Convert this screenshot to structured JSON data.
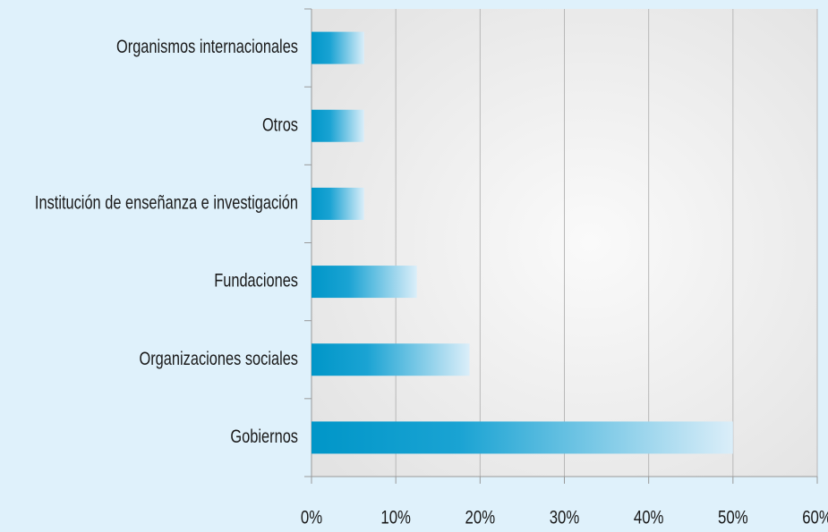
{
  "chart_data": {
    "type": "bar",
    "orientation": "horizontal",
    "categories": [
      "Organismos internacionales",
      "Otros",
      "Institución de enseñanza e investigación",
      "Fundaciones",
      "Organizaciones sociales",
      "Gobiernos"
    ],
    "values": [
      6.25,
      6.25,
      6.25,
      12.5,
      18.75,
      50
    ],
    "color": "#0099cc",
    "xlim": [
      0,
      60
    ],
    "xticks": [
      {
        "value": 0,
        "label": "0%"
      },
      {
        "value": 10,
        "label": "10%"
      },
      {
        "value": 20,
        "label": "20%"
      },
      {
        "value": 30,
        "label": "30%"
      },
      {
        "value": 40,
        "label": "40%"
      },
      {
        "value": 50,
        "label": "50%"
      },
      {
        "value": 60,
        "label": "60%"
      }
    ],
    "grid": true
  }
}
